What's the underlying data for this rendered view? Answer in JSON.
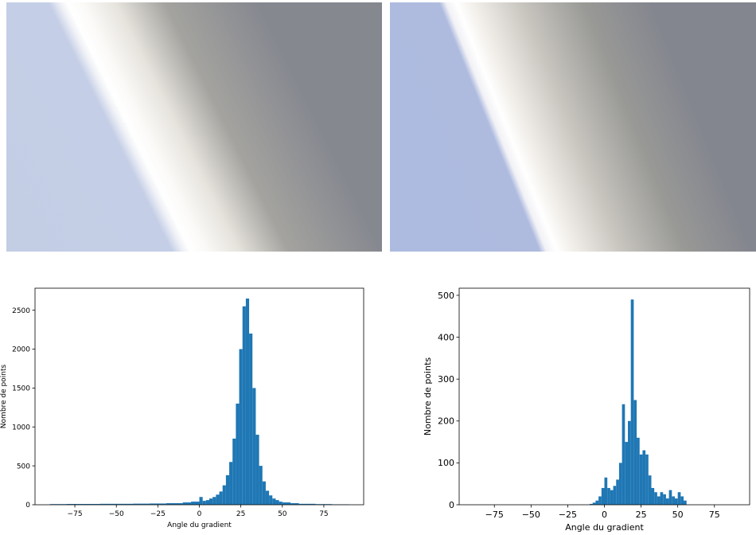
{
  "chart_data": [
    {
      "type": "histogram",
      "xlabel": "Angle du gradient",
      "ylabel": "Nombre de points",
      "color": "#1f77b4",
      "bins": [
        -90,
        -80,
        -70,
        -60,
        -50,
        -40,
        -30,
        -20,
        -10,
        -5,
        0,
        2,
        4,
        6,
        8,
        10,
        12,
        14,
        16,
        18,
        20,
        22,
        24,
        26,
        28,
        30,
        32,
        34,
        36,
        38,
        40,
        42,
        44,
        46,
        48,
        50,
        55,
        60,
        70,
        80,
        90
      ],
      "values": [
        8,
        10,
        10,
        12,
        12,
        14,
        16,
        20,
        30,
        40,
        100,
        50,
        60,
        80,
        100,
        130,
        170,
        250,
        380,
        550,
        850,
        1300,
        2000,
        2550,
        2650,
        2200,
        1500,
        900,
        500,
        300,
        180,
        120,
        80,
        60,
        40,
        30,
        20,
        12,
        8,
        5
      ],
      "xlim": [
        -99,
        99
      ],
      "ylim": [
        0,
        2783
      ],
      "xticks": [
        {
          "value": -75,
          "label": "−75"
        },
        {
          "value": -50,
          "label": "−50"
        },
        {
          "value": -25,
          "label": "−25"
        },
        0,
        25,
        50,
        75
      ],
      "yticks": [
        0,
        500,
        1000,
        1500,
        2000,
        2500
      ]
    },
    {
      "type": "histogram",
      "xlabel": "Angle du gradient",
      "ylabel": "Nombre de points",
      "color": "#1f77b4",
      "bins": [
        -90,
        -10,
        -8,
        -6,
        -4,
        -2,
        0,
        2,
        4,
        6,
        8,
        10,
        12,
        14,
        16,
        18,
        20,
        22,
        24,
        26,
        28,
        30,
        32,
        34,
        36,
        38,
        40,
        42,
        44,
        46,
        48,
        50,
        52,
        54,
        56,
        90
      ],
      "values": [
        0,
        2,
        5,
        10,
        20,
        40,
        65,
        40,
        35,
        45,
        60,
        100,
        240,
        150,
        200,
        490,
        250,
        160,
        120,
        130,
        120,
        70,
        40,
        30,
        20,
        30,
        25,
        15,
        35,
        20,
        15,
        30,
        20,
        10,
        0
      ],
      "xlim": [
        -99,
        99
      ],
      "ylim": [
        0,
        517
      ],
      "xticks": [
        {
          "value": -75,
          "label": "−75"
        },
        {
          "value": -50,
          "label": "−50"
        },
        {
          "value": -25,
          "label": "−25"
        },
        0,
        25,
        50,
        75
      ],
      "yticks": [
        0,
        100,
        200,
        300,
        400,
        500
      ]
    }
  ]
}
